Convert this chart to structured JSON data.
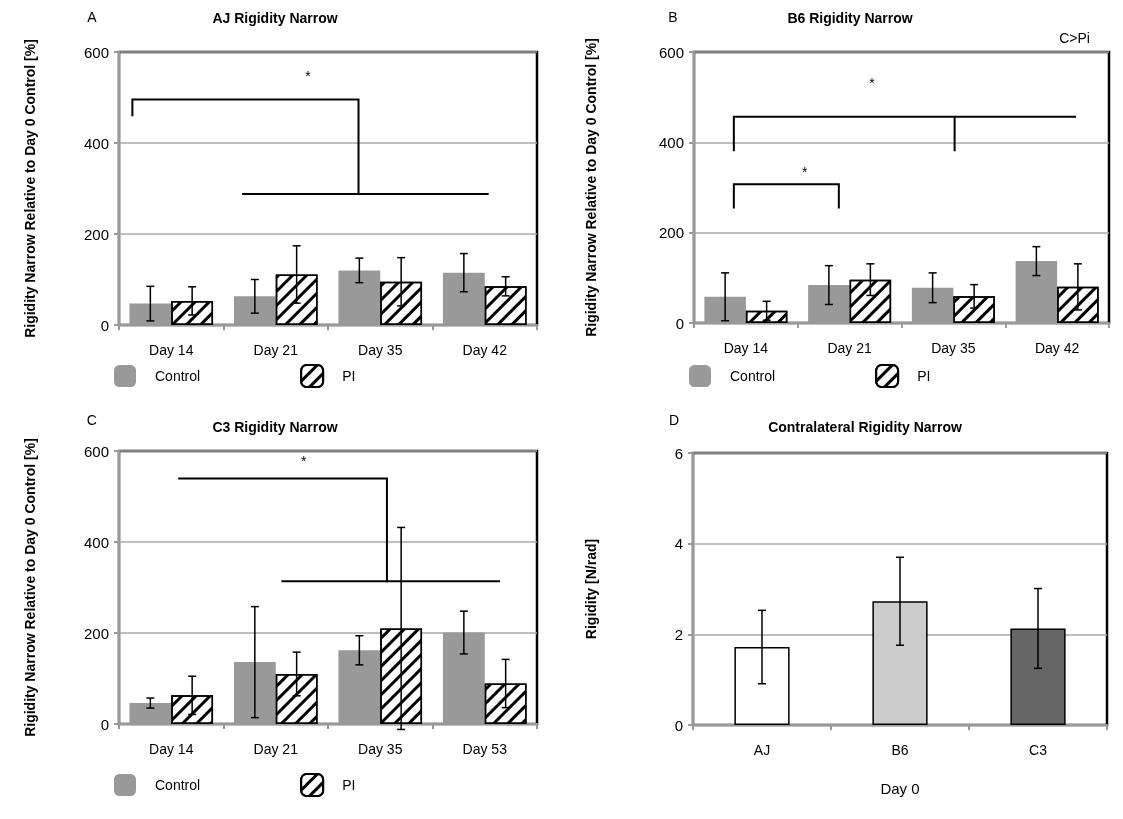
{
  "chart_data": [
    {
      "type": "bar",
      "title": "AJ Rigidity Narrow",
      "ylabel": "Rigidity Narrow Relative to Day 0 Control [%]",
      "categories": [
        "Day 14",
        "Day 21",
        "Day 35",
        "Day 42"
      ],
      "series": [
        {
          "name": "Control",
          "color": "#999999",
          "values": [
            47,
            63,
            120,
            115
          ],
          "errors": [
            38,
            37,
            27,
            42
          ]
        },
        {
          "name": "PI",
          "color": "#ffffff",
          "values": [
            53,
            111,
            95,
            85
          ],
          "errors": [
            31,
            63,
            53,
            21
          ]
        }
      ],
      "ylim": [
        0,
        600
      ],
      "yticks": [
        0,
        200,
        400,
        600
      ],
      "grid": "y",
      "legend": "bottom",
      "annotations": [
        "A",
        "*"
      ]
    },
    {
      "type": "bar",
      "title": "B6 Rigidity Narrow",
      "ylabel": "Rigidity Narrow Relative to Day 0 Control [%]",
      "categories": [
        "Day 14",
        "Day 21",
        "Day 35",
        "Day 42"
      ],
      "series": [
        {
          "name": "Control",
          "color": "#999999",
          "values": [
            58,
            84,
            78,
            137
          ],
          "errors": [
            53,
            43,
            33,
            32
          ]
        },
        {
          "name": "PI",
          "color": "#ffffff",
          "values": [
            27,
            96,
            59,
            80
          ],
          "errors": [
            21,
            35,
            26,
            51
          ]
        }
      ],
      "ylim": [
        0,
        600
      ],
      "yticks": [
        0,
        200,
        400,
        600
      ],
      "grid": "y",
      "legend": "bottom",
      "annotations": [
        "B",
        "*",
        "*",
        "C>Pi"
      ]
    },
    {
      "type": "bar",
      "title": "C3 Rigidity Narrow",
      "ylabel": "Rigidity Narrow Relative to Day 0 Control [%]",
      "categories": [
        "Day 14",
        "Day 21",
        "Day 35",
        "Day 53"
      ],
      "series": [
        {
          "name": "Control",
          "color": "#999999",
          "values": [
            46,
            136,
            162,
            201
          ],
          "errors": [
            11,
            122,
            32,
            47
          ]
        },
        {
          "name": "PI",
          "color": "#ffffff",
          "values": [
            63,
            110,
            210,
            89
          ],
          "errors": [
            42,
            48,
            222,
            53
          ]
        }
      ],
      "ylim": [
        0,
        600
      ],
      "yticks": [
        0,
        200,
        400,
        600
      ],
      "grid": "y",
      "legend": "bottom",
      "annotations": [
        "C",
        "*"
      ]
    },
    {
      "type": "bar",
      "title": "Contralateral Rigidity Narrow",
      "xlabel": "Day 0",
      "ylabel": "Rigidity [N/rad]",
      "categories": [
        "AJ",
        "B6",
        "C3"
      ],
      "values": [
        1.72,
        2.73,
        2.13
      ],
      "colors": [
        "#ffffff",
        "#cccccc",
        "#666666"
      ],
      "errors": [
        0.81,
        0.97,
        0.88
      ],
      "ylim": [
        0,
        6
      ],
      "yticks": [
        0,
        2,
        4,
        6
      ],
      "grid": "y",
      "annotations": [
        "D"
      ]
    }
  ]
}
